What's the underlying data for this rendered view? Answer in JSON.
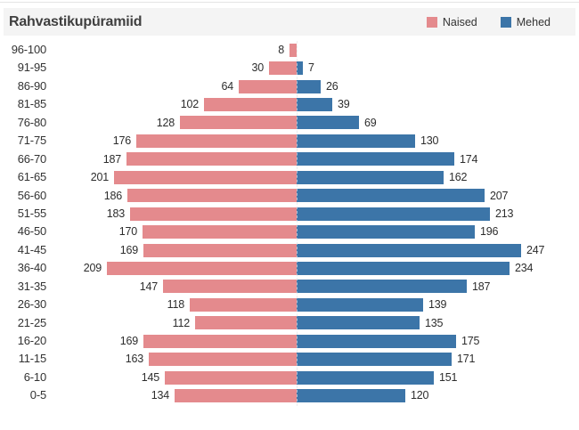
{
  "header": {
    "title": "Rahvastikupüramiid",
    "legend": [
      {
        "label": "Naised",
        "color": "#E48A8D"
      },
      {
        "label": "Mehed",
        "color": "#3C75A8"
      }
    ]
  },
  "chart_data": {
    "type": "bar",
    "subtype": "population-pyramid",
    "title": "Rahvastikupüramiid",
    "orientation": "horizontal",
    "categories": [
      "96-100",
      "91-95",
      "86-90",
      "81-85",
      "76-80",
      "71-75",
      "66-70",
      "61-65",
      "56-60",
      "51-55",
      "46-50",
      "41-45",
      "36-40",
      "31-35",
      "26-30",
      "21-25",
      "16-20",
      "11-15",
      "6-10",
      "0-5"
    ],
    "series": [
      {
        "name": "Naised",
        "side": "left",
        "color": "#E48A8D",
        "values": [
          8,
          30,
          64,
          102,
          128,
          176,
          187,
          201,
          186,
          183,
          170,
          169,
          209,
          147,
          118,
          112,
          169,
          163,
          145,
          134
        ]
      },
      {
        "name": "Mehed",
        "side": "right",
        "color": "#3C75A8",
        "values": [
          0,
          7,
          26,
          39,
          69,
          130,
          174,
          162,
          207,
          213,
          196,
          247,
          234,
          187,
          139,
          135,
          175,
          171,
          151,
          120
        ]
      }
    ],
    "xlim": [
      0,
      250
    ],
    "value_labels": true,
    "grid": false,
    "legend_position": "top-right",
    "center_axis": "dashed"
  }
}
